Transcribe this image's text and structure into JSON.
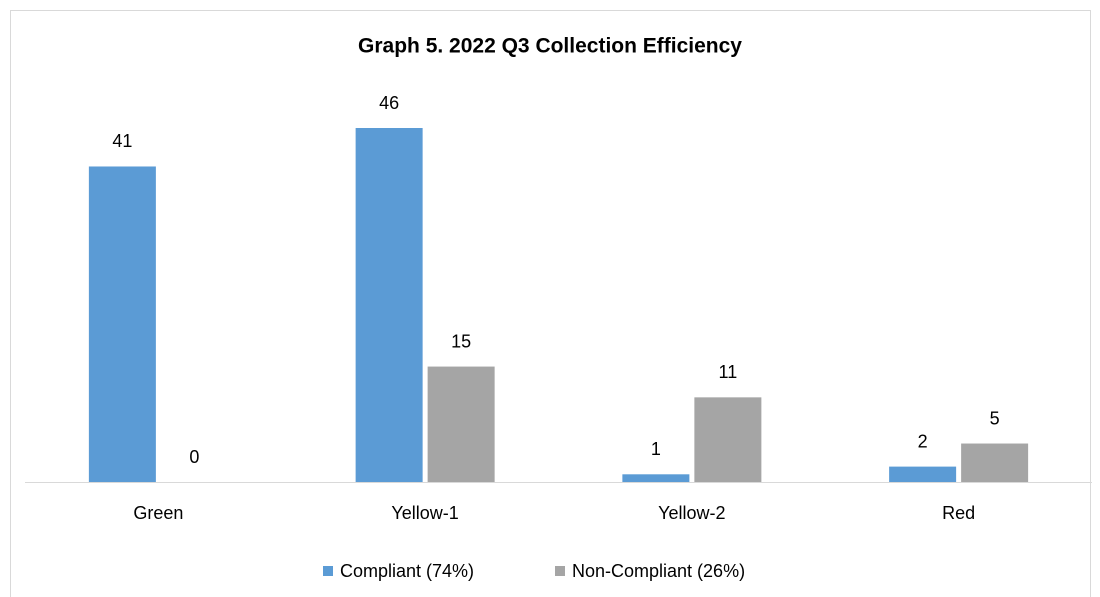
{
  "chart_data": {
    "type": "bar",
    "title": "Graph 5. 2022 Q3 Collection Efficiency",
    "categories": [
      "Green",
      "Yellow-1",
      "Yellow-2",
      "Red"
    ],
    "series": [
      {
        "name": "Compliant (74%)",
        "color": "#5b9bd5",
        "values": [
          41,
          46,
          1,
          2
        ]
      },
      {
        "name": "Non-Compliant (26%)",
        "color": "#a5a5a5",
        "values": [
          0,
          15,
          11,
          5
        ]
      }
    ],
    "legend": "bottom"
  }
}
